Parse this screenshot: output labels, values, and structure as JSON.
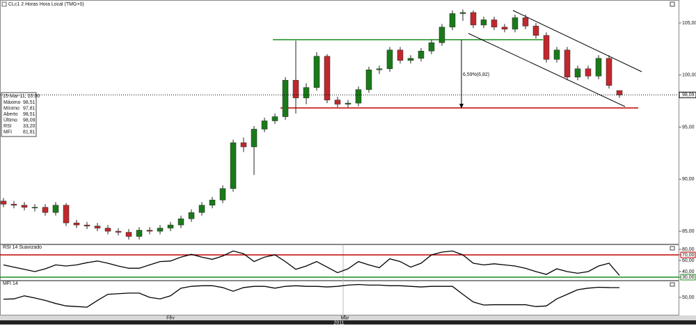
{
  "window_title": "CLc1 2 Horas Hora Local (TMG+0)",
  "info_box": {
    "date": "15-Mar-11, 10:00",
    "rows": [
      [
        "Máximo",
        "98,51"
      ],
      [
        "Mínimo",
        "97,81"
      ],
      [
        "Aberto",
        "98,51"
      ],
      [
        "Último",
        "98,09"
      ],
      [
        "RSI",
        "33,20"
      ],
      [
        "MFI",
        "81,81"
      ]
    ]
  },
  "annotation": "6,59%(6,82)",
  "last_price": {
    "value": 98.09,
    "label": "98,09"
  },
  "xticks": [
    {
      "value": 16,
      "label": "Fev"
    },
    {
      "value": 32.7,
      "label": "Mar"
    }
  ],
  "year_label": "2011",
  "chart_data": [
    {
      "type": "candlestick",
      "up_color": "#1a7a1a",
      "down_color": "#c0282d",
      "ylim": [
        83.8,
        106.4
      ],
      "yticks": [
        {
          "value": 85,
          "label": "85,00"
        },
        {
          "value": 90,
          "label": "90,00"
        },
        {
          "value": 95,
          "label": "95,00"
        },
        {
          "value": 100,
          "label": "100,00"
        },
        {
          "value": 105,
          "label": "105,00"
        }
      ],
      "open": [
        87.9,
        87.6,
        87.5,
        87.3,
        87.3,
        86.8,
        87.5,
        85.8,
        85.6,
        85.5,
        85.3,
        85.0,
        84.9,
        84.5,
        85.1,
        85.0,
        85.3,
        85.6,
        86.2,
        86.8,
        87.5,
        88.0,
        89.1,
        93.5,
        93.1,
        94.8,
        95.6,
        96.0,
        99.5,
        97.8,
        98.8,
        101.8,
        97.6,
        97.2,
        97.3,
        98.6,
        100.5,
        100.6,
        102.4,
        101.4,
        101.6,
        102.3,
        103.1,
        104.6,
        105.9,
        106.0,
        104.8,
        105.3,
        104.6,
        104.4,
        105.5,
        104.7,
        103.8,
        101.5,
        102.4,
        99.8,
        100.6,
        99.9,
        101.6,
        98.51
      ],
      "high": [
        88.2,
        87.9,
        87.8,
        87.6,
        87.6,
        87.8,
        87.7,
        86.1,
        85.9,
        85.8,
        85.6,
        85.3,
        85.2,
        85.4,
        85.4,
        85.6,
        85.9,
        86.5,
        87.1,
        87.8,
        88.3,
        89.4,
        93.8,
        94.0,
        95.1,
        95.9,
        96.3,
        99.8,
        103.3,
        99.2,
        102.2,
        102.0,
        97.9,
        97.6,
        98.9,
        100.8,
        100.9,
        102.7,
        102.7,
        101.9,
        102.6,
        103.4,
        104.9,
        106.2,
        106.3,
        106.2,
        105.6,
        105.6,
        104.9,
        105.8,
        105.8,
        105.0,
        104.1,
        102.7,
        102.7,
        100.9,
        100.9,
        101.9,
        101.9,
        98.51
      ],
      "low": [
        87.3,
        87.2,
        87.0,
        86.9,
        86.5,
        86.5,
        85.5,
        85.3,
        85.2,
        85.0,
        84.7,
        84.6,
        84.2,
        84.2,
        84.7,
        84.7,
        85.0,
        85.3,
        85.9,
        86.5,
        87.2,
        87.7,
        88.8,
        92.6,
        90.4,
        94.5,
        95.3,
        95.7,
        96.3,
        97.2,
        98.5,
        97.3,
        96.9,
        96.9,
        97.0,
        98.3,
        100.1,
        100.3,
        101.1,
        101.1,
        101.3,
        102.0,
        102.8,
        104.3,
        105.2,
        104.5,
        104.5,
        104.3,
        104.1,
        104.1,
        104.4,
        103.5,
        101.2,
        101.2,
        99.5,
        99.5,
        99.6,
        99.6,
        98.7,
        97.81
      ],
      "close": [
        87.6,
        87.5,
        87.3,
        87.3,
        86.8,
        87.5,
        85.8,
        85.6,
        85.5,
        85.3,
        85.0,
        84.9,
        84.5,
        85.1,
        85.0,
        85.3,
        85.6,
        86.2,
        86.8,
        87.5,
        88.0,
        89.1,
        93.5,
        93.1,
        94.8,
        95.6,
        96.0,
        99.5,
        97.8,
        98.8,
        101.8,
        97.6,
        97.2,
        97.3,
        98.6,
        100.5,
        100.6,
        102.4,
        101.4,
        101.6,
        102.3,
        103.1,
        104.6,
        105.9,
        106.0,
        104.8,
        105.3,
        104.6,
        104.4,
        105.5,
        104.7,
        103.8,
        101.5,
        102.4,
        99.8,
        100.6,
        99.9,
        101.6,
        99.0,
        98.09
      ]
    },
    {
      "type": "line",
      "title": "RSI 14 Suavizado",
      "color": "#000000",
      "ylim": [
        25,
        87.5
      ],
      "yticks": [
        {
          "value": 80,
          "label": "80,00"
        },
        {
          "value": 70,
          "label": "70,00"
        },
        {
          "value": 60,
          "label": "60,00"
        },
        {
          "value": 40,
          "label": "40,00"
        },
        {
          "value": 30,
          "label": "30,00"
        }
      ],
      "levels": [
        {
          "value": 70,
          "color": "#c00000"
        },
        {
          "value": 30,
          "color": "#1a8a1a"
        }
      ],
      "values": [
        52,
        48,
        44,
        40,
        45,
        52,
        50,
        52,
        56,
        59,
        55,
        50,
        46,
        46,
        52,
        58,
        59,
        66,
        71,
        66,
        62,
        68,
        77,
        72,
        58,
        66,
        70,
        58,
        44,
        50,
        58,
        48,
        38,
        45,
        58,
        52,
        47,
        63,
        58,
        48,
        55,
        70,
        75,
        77,
        70,
        55,
        52,
        54,
        52,
        50,
        46,
        40,
        35,
        45,
        40,
        37,
        40,
        50,
        55,
        33.2
      ]
    },
    {
      "type": "line",
      "title": "MFI 14",
      "color": "#000000",
      "ylim": [
        -6.8,
        102.3
      ],
      "yticks": [
        {
          "value": 50,
          "label": "50,00"
        }
      ],
      "values": [
        44,
        45,
        55,
        48,
        40,
        30,
        22,
        20,
        18,
        40,
        60,
        62,
        64,
        64,
        50,
        45,
        55,
        80,
        86,
        88,
        88,
        82,
        70,
        82,
        86,
        86,
        80,
        86,
        88,
        86,
        86,
        84,
        86,
        90,
        92,
        90,
        90,
        88,
        88,
        86,
        84,
        86,
        86,
        86,
        60,
        35,
        25,
        26,
        26,
        26,
        26,
        20,
        22,
        45,
        60,
        75,
        80,
        83,
        82,
        81.81
      ]
    }
  ]
}
